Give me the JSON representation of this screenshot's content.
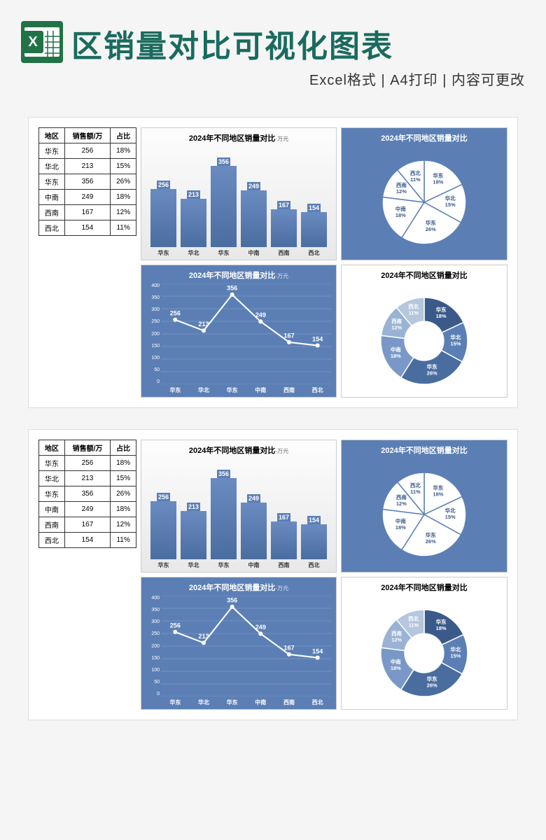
{
  "header": {
    "title": "区销量对比可视化图表",
    "subtitle": "Excel格式 | A4打印 | 内容可更改",
    "icon_name": "excel-icon",
    "icon_bg": "#217346",
    "icon_accent": "#ffffff",
    "title_color": "#1a6b5e"
  },
  "colors": {
    "primary": "#5b7fb5",
    "primary_dark": "#4a6da0",
    "primary_light": "#8aa5cc",
    "primary_lighter": "#b5c6dd",
    "background": "#f5f5f5",
    "panel_border": "#cccccc",
    "table_border": "#333333",
    "white": "#ffffff",
    "text": "#333333"
  },
  "table": {
    "columns": [
      "地区",
      "销售额/万",
      "占比"
    ],
    "rows": [
      [
        "华东",
        "256",
        "18%"
      ],
      [
        "华北",
        "213",
        "15%"
      ],
      [
        "华东",
        "356",
        "26%"
      ],
      [
        "中南",
        "249",
        "18%"
      ],
      [
        "西南",
        "167",
        "12%"
      ],
      [
        "西北",
        "154",
        "11%"
      ]
    ],
    "font_size": 10
  },
  "bar_chart": {
    "type": "bar",
    "title": "2024年不同地区销量对比",
    "unit": "-万元",
    "categories": [
      "华东",
      "华北",
      "华东",
      "中南",
      "西南",
      "西北"
    ],
    "values": [
      256,
      213,
      356,
      249,
      167,
      154
    ],
    "max_value": 400,
    "bar_color": "#5b7fb5",
    "label_bg": "#5b7fb5",
    "label_color": "#ffffff",
    "title_fontsize": 11,
    "background": "linear-gradient(#fdfdfd,#e8e8e8)"
  },
  "pie_chart": {
    "type": "pie",
    "title": "2024年不同地区销量对比",
    "background_color": "#5b7fb5",
    "segments": [
      {
        "label": "华东",
        "pct": 18,
        "text": "华东\n18%"
      },
      {
        "label": "华北",
        "pct": 15,
        "text": "华北\n15%"
      },
      {
        "label": "华东",
        "pct": 26,
        "text": "华东\n26%"
      },
      {
        "label": "中南",
        "pct": 18,
        "text": "中南\n18%"
      },
      {
        "label": "西南",
        "pct": 12,
        "text": "西南\n12%"
      },
      {
        "label": "西北",
        "pct": 11,
        "text": "西北\n11%"
      }
    ],
    "fill": "#ffffff",
    "stroke": "#5b7fb5",
    "label_color": "#3a5a8a",
    "title_color": "#ffffff"
  },
  "line_chart": {
    "type": "line",
    "title": "2024年不同地区销量对比",
    "unit": "-万元",
    "background_color": "#5b7fb5",
    "categories": [
      "华东",
      "华北",
      "华东",
      "中南",
      "西南",
      "西北"
    ],
    "values": [
      256,
      213,
      356,
      249,
      167,
      154
    ],
    "ylim": [
      0,
      400
    ],
    "ytick_step": 50,
    "yticks": [
      "0",
      "50",
      "100",
      "150",
      "200",
      "250",
      "300",
      "350",
      "400"
    ],
    "line_color": "#ffffff",
    "marker_color": "#ffffff",
    "grid_color": "#8aa5cc",
    "label_color": "#ffffff",
    "title_color": "#ffffff"
  },
  "donut_chart": {
    "type": "donut",
    "title": "2024年不同地区销量对比",
    "background_color": "#ffffff",
    "segments": [
      {
        "label": "华东",
        "pct": 18,
        "color": "#3a5a8a",
        "text": "华东\n18%"
      },
      {
        "label": "华北",
        "pct": 15,
        "color": "#5b7fb5",
        "text": "华北\n15%"
      },
      {
        "label": "华东",
        "pct": 26,
        "color": "#4a6da0",
        "text": "华东\n26%"
      },
      {
        "label": "中南",
        "pct": 18,
        "color": "#7a98c7",
        "text": "中南\n18%"
      },
      {
        "label": "西南",
        "pct": 12,
        "color": "#9ab3d5",
        "text": "西南\n12%"
      },
      {
        "label": "西北",
        "pct": 11,
        "color": "#b5c6dd",
        "text": "西北\n11%"
      }
    ],
    "inner_radius_ratio": 0.45,
    "label_color": "#ffffff"
  }
}
